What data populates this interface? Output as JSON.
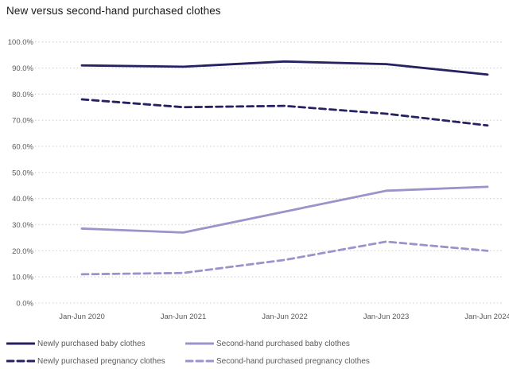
{
  "title": "New versus second-hand purchased clothes",
  "chart_data": {
    "type": "line",
    "categories": [
      "Jan-Jun 2020",
      "Jan-Jun 2021",
      "Jan-Jun 2022",
      "Jan-Jun 2023",
      "Jan-Jun 2024"
    ],
    "series": [
      {
        "name": "Newly purchased baby clothes",
        "values": [
          91,
          90.5,
          92.5,
          91.5,
          87.5
        ],
        "color": "#262262",
        "dashed": false
      },
      {
        "name": "Newly purchased pregnancy clothes",
        "values": [
          78,
          75,
          75.5,
          72.5,
          68
        ],
        "color": "#262262",
        "dashed": true
      },
      {
        "name": "Second-hand purchased baby clothes",
        "values": [
          28.5,
          27,
          35,
          43,
          44.5
        ],
        "color": "#9b93c9",
        "dashed": false
      },
      {
        "name": "Second-hand purchased pregnancy clothes",
        "values": [
          11,
          11.5,
          16.5,
          23.5,
          20
        ],
        "color": "#9b93c9",
        "dashed": true
      }
    ],
    "ylim": [
      0,
      100
    ],
    "ytick_step": 10,
    "ytick_labels": [
      "0.0%",
      "10.0%",
      "20.0%",
      "30.0%",
      "40.0%",
      "50.0%",
      "60.0%",
      "70.0%",
      "80.0%",
      "90.0%",
      "100.0%"
    ],
    "grid": "horizontal-dotted",
    "legend_position": "bottom"
  },
  "colors": {
    "navy": "#262262",
    "purple": "#9b93c9",
    "grid": "#d2d2d2",
    "axis_text": "#595959",
    "title_text": "#1a1a1a",
    "background": "#ffffff"
  }
}
